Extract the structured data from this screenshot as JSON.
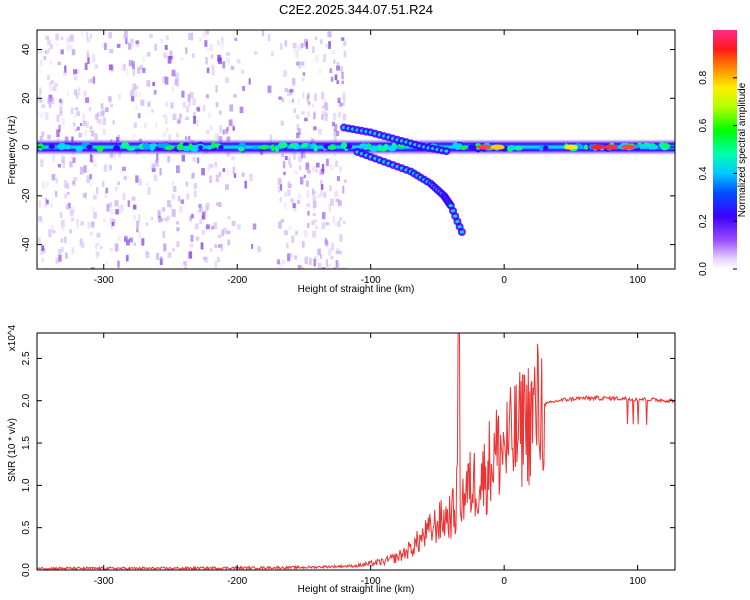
{
  "title": "C2E2.2025.344.07.51.R24",
  "colors": {
    "axis": "#000000",
    "snr_line": "#ee3333",
    "spectral_band": "#6a2bd8",
    "speckle": "#b89bec"
  },
  "chart_data": [
    {
      "type": "heatmap",
      "title": "C2E2.2025.344.07.51.R24",
      "xlabel": "Height of straight line (km)",
      "ylabel": "Frequency (Hz)",
      "xlim": [
        -350,
        128
      ],
      "ylim": [
        -50,
        48
      ],
      "x_ticks": [
        -300,
        -200,
        -100,
        0,
        100
      ],
      "y_ticks": [
        -40,
        -20,
        0,
        20,
        40
      ],
      "colorbar": {
        "label": "Normalized spectral amplitude",
        "range": [
          0,
          1
        ],
        "ticks": [
          "0.0",
          "0.2",
          "0.4",
          "0.6",
          "0.8"
        ],
        "colormap": "rainbow"
      },
      "main_band": {
        "x": [
          -350,
          128
        ],
        "frequency_hz": 0
      },
      "upper_branch": {
        "x": [
          -120,
          -100,
          -80,
          -60,
          -40
        ],
        "frequency_hz": [
          8,
          6,
          3,
          0,
          -2
        ]
      },
      "lower_branch": {
        "x": [
          -110,
          -90,
          -70,
          -55,
          -45,
          -40,
          -30
        ],
        "frequency_hz": [
          -2,
          -6,
          -10,
          -15,
          -20,
          -24,
          -37
        ]
      }
    },
    {
      "type": "line",
      "xlabel": "Height of straight line (km)",
      "ylabel": "SNR (10 * v/v)",
      "y_multiplier": "x10^4",
      "xlim": [
        -350,
        128
      ],
      "ylim": [
        0,
        2.8
      ],
      "x_ticks": [
        -300,
        -200,
        -100,
        0,
        100
      ],
      "y_ticks": [
        "0.0",
        "0.5",
        "1.0",
        "1.5",
        "2.0",
        "2.5"
      ],
      "series": [
        {
          "name": "SNR",
          "x": [
            -350,
            -250,
            -150,
            -110,
            -90,
            -80,
            -70,
            -60,
            -50,
            -45,
            -40,
            -36,
            -34,
            -32,
            -30,
            -25,
            -20,
            -15,
            -10,
            -5,
            0,
            5,
            10,
            15,
            20,
            25,
            30,
            40,
            50,
            60,
            80,
            100,
            128
          ],
          "y": [
            0.02,
            0.02,
            0.03,
            0.05,
            0.1,
            0.15,
            0.25,
            0.4,
            0.55,
            0.6,
            0.65,
            0.7,
            1.5,
            0.8,
            0.9,
            1.0,
            1.05,
            1.1,
            1.3,
            1.4,
            1.45,
            1.5,
            1.6,
            1.7,
            1.8,
            1.9,
            1.95,
            2.0,
            2.02,
            2.03,
            2.03,
            2.02,
            2.0
          ]
        }
      ],
      "spike": {
        "x": -34,
        "y": 2.8
      },
      "secondary_spike": {
        "x": 15,
        "y": 2.3
      }
    }
  ]
}
